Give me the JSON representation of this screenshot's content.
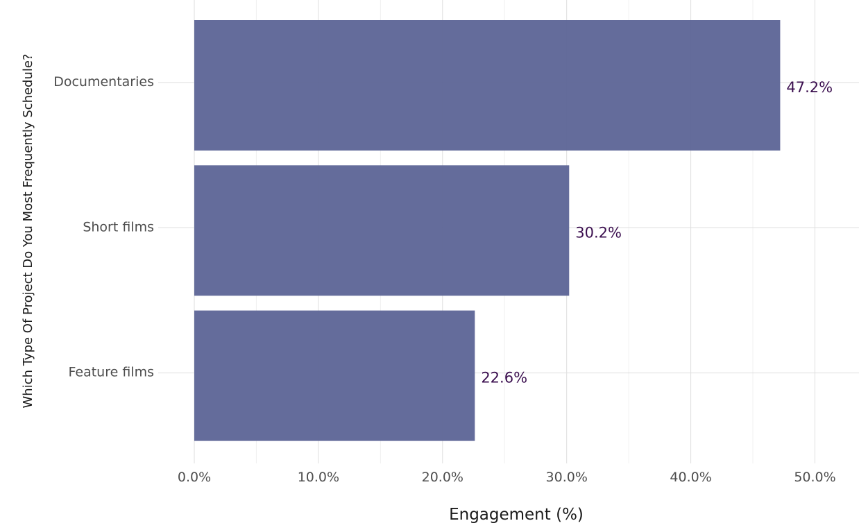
{
  "chart_data": {
    "type": "bar",
    "orientation": "horizontal",
    "categories": [
      "Documentaries",
      "Short films",
      "Feature films"
    ],
    "values": [
      47.2,
      30.2,
      22.6
    ],
    "value_labels": [
      "47.2%",
      "30.2%",
      "22.6%"
    ],
    "xlabel": "Engagement (%)",
    "ylabel": "Which Type Of Project Do You Most Frequently Schedule?",
    "xlim": [
      0,
      53.5
    ],
    "xticks": [
      0,
      10,
      20,
      30,
      40,
      50
    ],
    "xtick_labels": [
      "0.0%",
      "10.0%",
      "20.0%",
      "30.0%",
      "40.0%",
      "50.0%"
    ],
    "grid": true,
    "legend": "none",
    "bar_color": "#5c6496",
    "label_color": "#3b0f4f"
  }
}
